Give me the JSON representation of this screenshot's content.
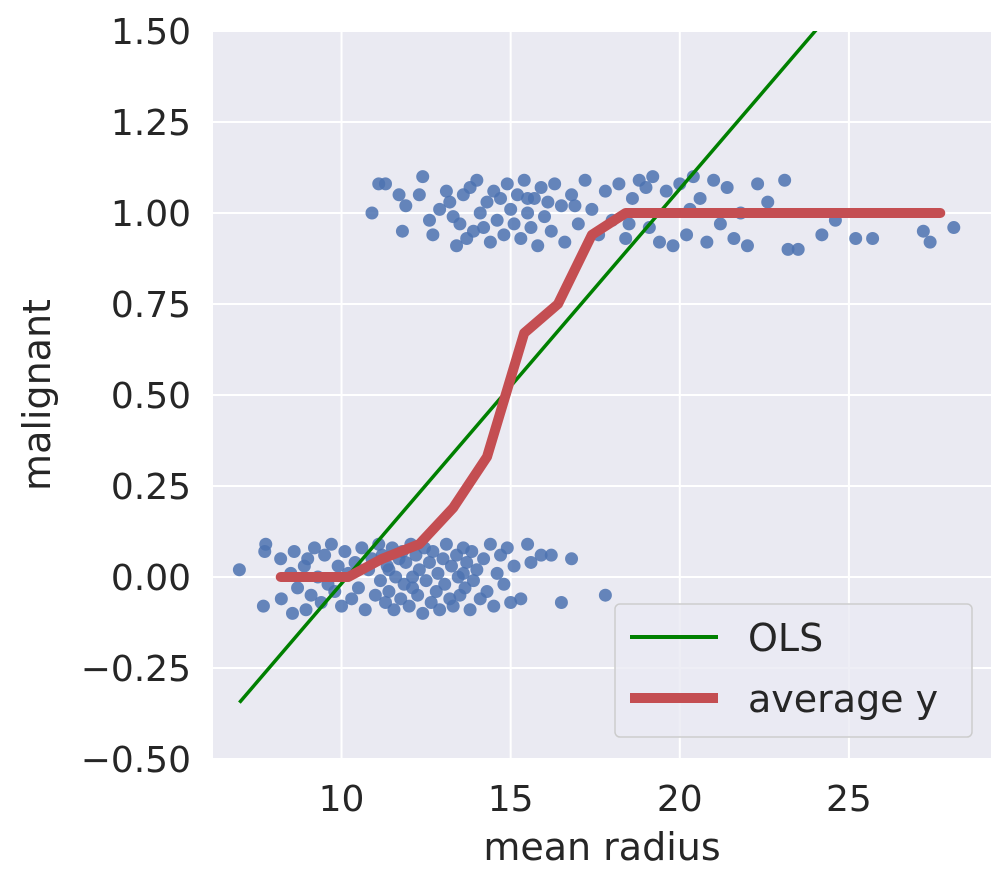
{
  "chart_data": {
    "type": "scatter",
    "xlabel": "mean radius",
    "ylabel": "malignant",
    "xlim": [
      6.2,
      29.2
    ],
    "ylim": [
      -0.5,
      1.5
    ],
    "x_ticks": [
      10,
      15,
      20,
      25
    ],
    "x_tick_labels": [
      "10",
      "15",
      "20",
      "25"
    ],
    "y_ticks": [
      -0.5,
      -0.25,
      0.0,
      0.25,
      0.5,
      0.75,
      1.0,
      1.25,
      1.5
    ],
    "y_tick_labels": [
      "−0.50",
      "−0.25",
      "0.00",
      "0.25",
      "0.50",
      "0.75",
      "1.00",
      "1.25",
      "1.50"
    ],
    "grid": true,
    "legend_placement": "lower-right",
    "colors": {
      "background": "#eaeaf2",
      "grid": "#ffffff",
      "points": "#4c72b0",
      "ols": "#008000",
      "average": "#c44e52"
    },
    "series": [
      {
        "name": "OLS",
        "kind": "line",
        "x": [
          6.98,
          28.11
        ],
        "y": [
          -0.345,
          1.945
        ]
      },
      {
        "name": "average y",
        "kind": "line",
        "x": [
          8.2,
          9.2,
          10.2,
          11.2,
          12.3,
          13.3,
          14.3,
          15.4,
          16.4,
          17.4,
          18.4,
          19.5,
          20.5,
          21.5,
          22.5,
          23.6,
          24.6,
          25.6,
          26.6,
          27.7
        ],
        "y": [
          0.0,
          0.0,
          0.0,
          0.05,
          0.09,
          0.19,
          0.33,
          0.67,
          0.75,
          0.94,
          1.0,
          1.0,
          1.0,
          1.0,
          1.0,
          1.0,
          1.0,
          1.0,
          1.0,
          1.0
        ]
      },
      {
        "kind": "scatter",
        "points": [
          [
            6.98,
            0.02
          ],
          [
            7.69,
            -0.08
          ],
          [
            7.73,
            0.07
          ],
          [
            7.76,
            0.09
          ],
          [
            8.2,
            0.05
          ],
          [
            8.22,
            -0.06
          ],
          [
            8.5,
            0.01
          ],
          [
            8.55,
            -0.1
          ],
          [
            8.6,
            0.07
          ],
          [
            8.7,
            -0.03
          ],
          [
            8.9,
            0.03
          ],
          [
            8.95,
            -0.09
          ],
          [
            9.0,
            0.05
          ],
          [
            9.1,
            -0.05
          ],
          [
            9.2,
            0.08
          ],
          [
            9.3,
            0.0
          ],
          [
            9.4,
            -0.07
          ],
          [
            9.5,
            0.06
          ],
          [
            9.6,
            -0.02
          ],
          [
            9.7,
            0.09
          ],
          [
            9.8,
            -0.04
          ],
          [
            9.9,
            0.03
          ],
          [
            10.0,
            -0.08
          ],
          [
            10.1,
            0.07
          ],
          [
            10.2,
            0.01
          ],
          [
            10.3,
            -0.06
          ],
          [
            10.4,
            0.04
          ],
          [
            10.5,
            -0.03
          ],
          [
            10.6,
            0.08
          ],
          [
            10.7,
            -0.09
          ],
          [
            10.8,
            0.02
          ],
          [
            10.9,
            0.05
          ],
          [
            11.0,
            -0.05
          ],
          [
            11.1,
            0.09
          ],
          [
            11.15,
            -0.01
          ],
          [
            11.2,
            0.06
          ],
          [
            11.3,
            -0.07
          ],
          [
            11.35,
            0.03
          ],
          [
            11.4,
            -0.04
          ],
          [
            11.5,
            0.08
          ],
          [
            11.55,
            -0.09
          ],
          [
            11.6,
            0.0
          ],
          [
            11.7,
            0.05
          ],
          [
            11.75,
            -0.06
          ],
          [
            11.8,
            0.07
          ],
          [
            11.85,
            -0.02
          ],
          [
            11.9,
            0.04
          ],
          [
            12.0,
            -0.08
          ],
          [
            12.05,
            0.09
          ],
          [
            12.1,
            -0.03
          ],
          [
            12.2,
            0.06
          ],
          [
            12.25,
            -0.05
          ],
          [
            12.3,
            0.02
          ],
          [
            12.4,
            -0.1
          ],
          [
            12.45,
            0.08
          ],
          [
            12.5,
            -0.01
          ],
          [
            12.6,
            0.04
          ],
          [
            12.65,
            -0.07
          ],
          [
            12.7,
            0.07
          ],
          [
            12.8,
            -0.04
          ],
          [
            12.85,
            0.01
          ],
          [
            12.9,
            -0.09
          ],
          [
            13.0,
            0.05
          ],
          [
            13.05,
            -0.02
          ],
          [
            13.1,
            0.09
          ],
          [
            13.2,
            -0.06
          ],
          [
            13.25,
            0.03
          ],
          [
            13.3,
            -0.08
          ],
          [
            13.4,
            0.06
          ],
          [
            13.45,
            0.0
          ],
          [
            13.5,
            -0.05
          ],
          [
            13.6,
            0.08
          ],
          [
            13.65,
            -0.03
          ],
          [
            13.7,
            0.04
          ],
          [
            13.8,
            -0.09
          ],
          [
            13.85,
            0.07
          ],
          [
            13.9,
            -0.01
          ],
          [
            14.0,
            0.02
          ],
          [
            14.1,
            -0.06
          ],
          [
            14.2,
            0.05
          ],
          [
            14.3,
            -0.04
          ],
          [
            14.4,
            0.09
          ],
          [
            14.5,
            -0.08
          ],
          [
            14.6,
            0.01
          ],
          [
            14.7,
            0.06
          ],
          [
            14.8,
            -0.02
          ],
          [
            14.9,
            0.08
          ],
          [
            15.0,
            -0.07
          ],
          [
            15.1,
            0.03
          ],
          [
            15.3,
            -0.06
          ],
          [
            15.5,
            0.09
          ],
          [
            15.6,
            0.04
          ],
          [
            15.9,
            0.06
          ],
          [
            16.2,
            0.06
          ],
          [
            16.5,
            -0.07
          ],
          [
            16.8,
            0.05
          ],
          [
            17.8,
            -0.05
          ],
          [
            11.4,
            0.02
          ],
          [
            12.1,
            0.0
          ],
          [
            13.6,
            0.01
          ],
          [
            10.9,
            1.0
          ],
          [
            11.1,
            1.08
          ],
          [
            11.3,
            1.08
          ],
          [
            11.7,
            1.05
          ],
          [
            11.8,
            0.95
          ],
          [
            11.9,
            1.02
          ],
          [
            12.3,
            1.05
          ],
          [
            12.4,
            1.1
          ],
          [
            12.6,
            0.98
          ],
          [
            12.7,
            0.94
          ],
          [
            12.9,
            1.01
          ],
          [
            13.1,
            1.06
          ],
          [
            13.2,
            1.03
          ],
          [
            13.3,
            0.99
          ],
          [
            13.4,
            0.91
          ],
          [
            13.5,
            0.97
          ],
          [
            13.6,
            1.05
          ],
          [
            13.7,
            0.93
          ],
          [
            13.8,
            1.07
          ],
          [
            13.9,
            0.95
          ],
          [
            14.0,
            1.09
          ],
          [
            14.1,
            1.0
          ],
          [
            14.2,
            0.96
          ],
          [
            14.3,
            1.03
          ],
          [
            14.4,
            0.92
          ],
          [
            14.5,
            1.06
          ],
          [
            14.6,
            0.98
          ],
          [
            14.7,
            1.04
          ],
          [
            14.8,
            0.94
          ],
          [
            14.9,
            1.08
          ],
          [
            15.0,
            1.01
          ],
          [
            15.1,
            0.97
          ],
          [
            15.2,
            1.05
          ],
          [
            15.3,
            0.93
          ],
          [
            15.4,
            1.09
          ],
          [
            15.5,
            1.0
          ],
          [
            15.6,
            0.96
          ],
          [
            15.7,
            1.04
          ],
          [
            15.8,
            0.91
          ],
          [
            15.9,
            1.07
          ],
          [
            16.0,
            0.99
          ],
          [
            16.1,
            1.03
          ],
          [
            16.2,
            0.95
          ],
          [
            16.3,
            1.08
          ],
          [
            16.5,
            1.02
          ],
          [
            16.6,
            0.92
          ],
          [
            16.8,
            1.05
          ],
          [
            17.0,
            0.97
          ],
          [
            17.2,
            1.09
          ],
          [
            17.4,
            1.01
          ],
          [
            17.6,
            0.94
          ],
          [
            17.8,
            1.06
          ],
          [
            18.0,
            0.98
          ],
          [
            18.2,
            1.08
          ],
          [
            18.4,
            0.93
          ],
          [
            18.6,
            1.04
          ],
          [
            18.8,
            1.09
          ],
          [
            19.0,
            1.07
          ],
          [
            19.2,
            1.1
          ],
          [
            19.4,
            0.92
          ],
          [
            19.6,
            1.06
          ],
          [
            19.8,
            0.91
          ],
          [
            20.0,
            1.08
          ],
          [
            20.2,
            0.94
          ],
          [
            20.4,
            1.1
          ],
          [
            20.6,
            1.04
          ],
          [
            20.8,
            0.92
          ],
          [
            21.0,
            1.09
          ],
          [
            21.2,
            0.97
          ],
          [
            21.4,
            1.07
          ],
          [
            21.6,
            0.93
          ],
          [
            21.8,
            1.0
          ],
          [
            22.0,
            0.91
          ],
          [
            22.3,
            1.08
          ],
          [
            22.6,
            1.03
          ],
          [
            23.1,
            1.09
          ],
          [
            23.2,
            0.9
          ],
          [
            23.5,
            0.9
          ],
          [
            24.2,
            0.94
          ],
          [
            24.6,
            0.98
          ],
          [
            25.2,
            0.93
          ],
          [
            25.7,
            0.93
          ],
          [
            27.2,
            0.95
          ],
          [
            27.4,
            0.92
          ],
          [
            28.1,
            0.96
          ],
          [
            19.1,
            0.96
          ],
          [
            20.3,
            1.01
          ],
          [
            18.5,
            0.97
          ],
          [
            16.9,
            1.02
          ],
          [
            15.5,
            1.04
          ]
        ]
      }
    ]
  }
}
